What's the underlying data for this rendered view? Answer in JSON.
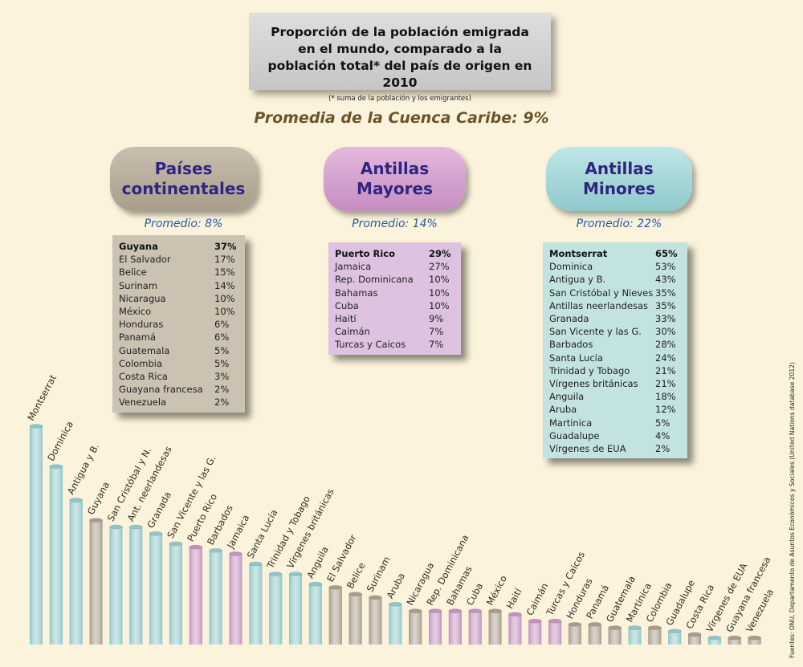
{
  "title": "Proporción de la población emigrada\nen el mundo, comparado a la\npoblación total* del país de origen en 2010",
  "title_note": "(* suma de la población y los emigrantes)",
  "overall_average": "Promedia de la Cuenca Caribe: 9%",
  "groups": [
    {
      "name": "Países\ncontinentales",
      "average": "Promedio: 8%",
      "color": "#a89c8a",
      "rows": [
        {
          "country": "Guyana",
          "value": "37%"
        },
        {
          "country": "El Salvador",
          "value": "17%"
        },
        {
          "country": "Belice",
          "value": "15%"
        },
        {
          "country": "Surinam",
          "value": "14%"
        },
        {
          "country": "Nicaragua",
          "value": "10%"
        },
        {
          "country": "México",
          "value": "10%"
        },
        {
          "country": "Honduras",
          "value": "6%"
        },
        {
          "country": "Panamá",
          "value": "6%"
        },
        {
          "country": "Guatemala",
          "value": "5%"
        },
        {
          "country": "Colombia",
          "value": "5%"
        },
        {
          "country": "Costa Rica",
          "value": "3%"
        },
        {
          "country": "Guayana francesa",
          "value": "2%"
        },
        {
          "country": "Venezuela",
          "value": "2%"
        }
      ]
    },
    {
      "name": "Antillas\nMayores",
      "average": "Promedio: 14%",
      "color": "#c491be",
      "rows": [
        {
          "country": "Puerto Rico",
          "value": "29%"
        },
        {
          "country": "Jamaica",
          "value": "27%"
        },
        {
          "country": "Rep. Dominicana",
          "value": "10%"
        },
        {
          "country": "Bahamas",
          "value": "10%"
        },
        {
          "country": "Cuba",
          "value": "10%"
        },
        {
          "country": "Haití",
          "value": "9%"
        },
        {
          "country": "Caimán",
          "value": "7%"
        },
        {
          "country": "Turcas y Caicos",
          "value": "7%"
        }
      ]
    },
    {
      "name": "Antillas\nMinores",
      "average": "Promedio: 22%",
      "color": "#8fc6c9",
      "rows": [
        {
          "country": "Montserrat",
          "value": "65%"
        },
        {
          "country": "Dominica",
          "value": "53%"
        },
        {
          "country": "Antigua y B.",
          "value": "43%"
        },
        {
          "country": "San Cristóbal y Nieves",
          "value": "35%"
        },
        {
          "country": "Antillas neerlandesas",
          "value": "35%"
        },
        {
          "country": "Granada",
          "value": "33%"
        },
        {
          "country": "San Vicente y las G.",
          "value": "30%"
        },
        {
          "country": "Barbados",
          "value": "28%"
        },
        {
          "country": "Santa Lucía",
          "value": "24%"
        },
        {
          "country": "Trinidad y Tobago",
          "value": "21%"
        },
        {
          "country": "Vírgenes británicas",
          "value": "21%"
        },
        {
          "country": "Anguila",
          "value": "18%"
        },
        {
          "country": "Aruba",
          "value": "12%"
        },
        {
          "country": "Martinica",
          "value": "5%"
        },
        {
          "country": "Guadalupe",
          "value": "4%"
        },
        {
          "country": "Vírgenes de EUA",
          "value": "2%"
        }
      ]
    }
  ],
  "source": "Fuentes: ONU, Departamento de Asuntos Económicos y Sociales (United Nations database 2012)",
  "chart_data": {
    "type": "bar",
    "categories": [
      "Montserrat",
      "Dominica",
      "Antigua y B.",
      "Guyana",
      "San Cristóbal y N.",
      "Ant. neerlandesas",
      "Granada",
      "San Vicente y las G.",
      "Puerto Rico",
      "Barbados",
      "Jamaica",
      "Santa Lucía",
      "Trinidad y Tobago",
      "Vírgenes británicas",
      "Anguila",
      "El Salvador",
      "Belice",
      "Surinam",
      "Aruba",
      "Nicaragua",
      "Rep. Dominicana",
      "Bahamas",
      "Cuba",
      "México",
      "Haití",
      "Caimán",
      "Turcas y Caicos",
      "Honduras",
      "Panamá",
      "Guatemala",
      "Martinica",
      "Colombia",
      "Guadalupe",
      "Costa Rica",
      "Vírgenes de EUA",
      "Guayana francesa",
      "Venezuela"
    ],
    "values": [
      65,
      53,
      43,
      37,
      35,
      35,
      33,
      30,
      29,
      28,
      27,
      24,
      21,
      21,
      18,
      17,
      15,
      14,
      12,
      10,
      10,
      10,
      10,
      10,
      9,
      7,
      7,
      6,
      6,
      5,
      5,
      5,
      4,
      3,
      2,
      2,
      2
    ],
    "groups": [
      "menores",
      "menores",
      "menores",
      "continentales",
      "menores",
      "menores",
      "menores",
      "menores",
      "mayores",
      "menores",
      "mayores",
      "menores",
      "menores",
      "menores",
      "menores",
      "continentales",
      "continentales",
      "continentales",
      "menores",
      "continentales",
      "mayores",
      "mayores",
      "mayores",
      "continentales",
      "mayores",
      "mayores",
      "mayores",
      "continentales",
      "continentales",
      "continentales",
      "menores",
      "continentales",
      "menores",
      "continentales",
      "menores",
      "continentales",
      "continentales"
    ],
    "group_colors": {
      "continentales": "#a89c8a",
      "mayores": "#c491be",
      "menores": "#8fc6c9"
    },
    "ylim": [
      0,
      65
    ]
  }
}
